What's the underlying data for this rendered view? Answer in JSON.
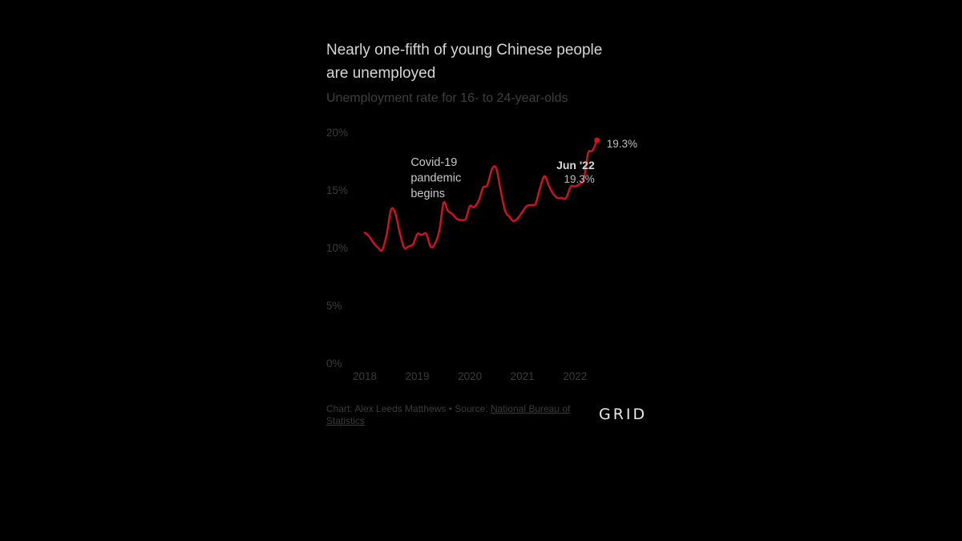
{
  "chart_data": {
    "type": "line",
    "title": "Nearly one-fifth of young Chinese people are unemployed",
    "subtitle": "Unemployment rate for 16- to 24-year-olds",
    "ylim": [
      0,
      20
    ],
    "xlim": [
      2018,
      2022.5
    ],
    "y_ticks": [
      {
        "value": 20,
        "label": "20%"
      },
      {
        "value": 15,
        "label": "15%"
      },
      {
        "value": 10,
        "label": "10%"
      },
      {
        "value": 5,
        "label": "5%"
      },
      {
        "value": 0,
        "label": "0%"
      }
    ],
    "x_ticks": [
      {
        "value": 2018,
        "label": "2018"
      },
      {
        "value": 2019,
        "label": "2019"
      },
      {
        "value": 2020,
        "label": "2020"
      },
      {
        "value": 2021,
        "label": "2021"
      },
      {
        "value": 2022,
        "label": "2022"
      }
    ],
    "grid": false,
    "line_color": "#d7111d",
    "series": [
      {
        "points": [
          [
            2018.0,
            11.3
          ],
          [
            2018.08,
            11.0
          ],
          [
            2018.17,
            10.4
          ],
          [
            2018.25,
            10.0
          ],
          [
            2018.33,
            9.8
          ],
          [
            2018.42,
            11.2
          ],
          [
            2018.5,
            13.3
          ],
          [
            2018.58,
            13.0
          ],
          [
            2018.67,
            11.2
          ],
          [
            2018.75,
            10.0
          ],
          [
            2018.83,
            10.1
          ],
          [
            2018.92,
            10.3
          ],
          [
            2019.0,
            11.2
          ],
          [
            2019.08,
            11.1
          ],
          [
            2019.17,
            11.2
          ],
          [
            2019.25,
            10.1
          ],
          [
            2019.33,
            10.3
          ],
          [
            2019.42,
            11.5
          ],
          [
            2019.5,
            13.9
          ],
          [
            2019.58,
            13.2
          ],
          [
            2019.67,
            12.9
          ],
          [
            2019.75,
            12.5
          ],
          [
            2019.83,
            12.4
          ],
          [
            2019.92,
            12.5
          ],
          [
            2020.0,
            13.6
          ],
          [
            2020.08,
            13.5
          ],
          [
            2020.17,
            14.1
          ],
          [
            2020.25,
            15.2
          ],
          [
            2020.33,
            15.4
          ],
          [
            2020.42,
            16.8
          ],
          [
            2020.5,
            16.9
          ],
          [
            2020.58,
            15.1
          ],
          [
            2020.67,
            13.2
          ],
          [
            2020.75,
            12.7
          ],
          [
            2020.83,
            12.3
          ],
          [
            2020.92,
            12.6
          ],
          [
            2021.0,
            13.1
          ],
          [
            2021.08,
            13.6
          ],
          [
            2021.17,
            13.7
          ],
          [
            2021.25,
            13.8
          ],
          [
            2021.33,
            15.1
          ],
          [
            2021.42,
            16.2
          ],
          [
            2021.5,
            15.4
          ],
          [
            2021.58,
            14.7
          ],
          [
            2021.67,
            14.3
          ],
          [
            2021.75,
            14.3
          ],
          [
            2021.83,
            14.3
          ],
          [
            2021.92,
            15.3
          ],
          [
            2022.0,
            15.3
          ],
          [
            2022.08,
            15.5
          ],
          [
            2022.17,
            16.0
          ],
          [
            2022.25,
            18.2
          ],
          [
            2022.33,
            18.4
          ],
          [
            2022.42,
            19.3
          ]
        ]
      }
    ],
    "annotations": [
      {
        "x": 2019.5,
        "lines": [
          "Covid-19",
          "pandemic",
          "begins"
        ]
      }
    ],
    "callout": {
      "label": "Jun '22",
      "value_label": "19.3%",
      "x": 2022.42,
      "y": 19.3
    },
    "end_label": "19.3%"
  },
  "footer": {
    "credit": "Chart: Alex Leeds Matthews • Source: ",
    "source_link": "National Bureau of Statistics"
  },
  "brand": {
    "name": "GRID"
  }
}
